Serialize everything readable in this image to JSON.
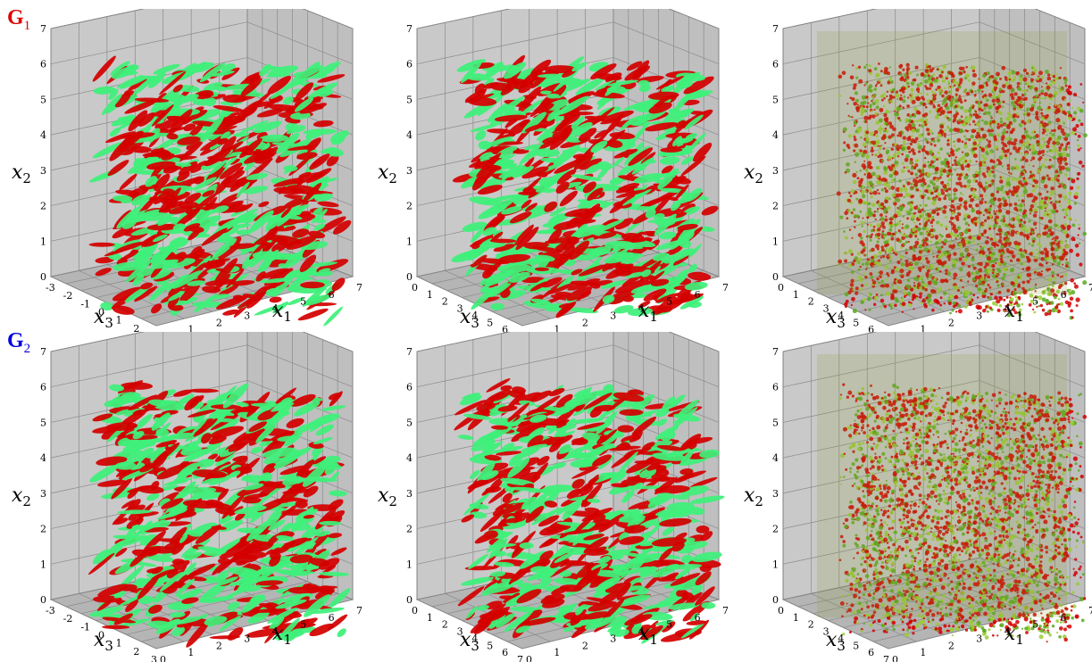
{
  "rows": [
    {
      "label_main": "G",
      "label_sub": "1",
      "color": "#e00000"
    },
    {
      "label_main": "G",
      "label_sub": "2",
      "color": "#0000e0"
    }
  ],
  "panels": [
    {
      "row": 0,
      "x3_ticks": [
        "-3",
        "-2",
        "-1",
        "0",
        "1",
        "2",
        "3"
      ],
      "density": "coarse"
    },
    {
      "row": 0,
      "x3_ticks": [
        "0",
        "1",
        "2",
        "3",
        "4",
        "5",
        "6",
        "7"
      ],
      "density": "coarse"
    },
    {
      "row": 0,
      "x3_ticks": [
        "0",
        "1",
        "2",
        "3",
        "4",
        "5",
        "6",
        "7"
      ],
      "density": "fine"
    },
    {
      "row": 1,
      "x3_ticks": [
        "-3",
        "-2",
        "-1",
        "0",
        "1",
        "2",
        "3"
      ],
      "density": "coarse"
    },
    {
      "row": 1,
      "x3_ticks": [
        "0",
        "1",
        "2",
        "3",
        "4",
        "5",
        "6",
        "7"
      ],
      "density": "coarse"
    },
    {
      "row": 1,
      "x3_ticks": [
        "0",
        "1",
        "2",
        "3",
        "4",
        "5",
        "6",
        "7"
      ],
      "density": "fine"
    }
  ],
  "x2_ticks": [
    "0",
    "1",
    "2",
    "3",
    "4",
    "5",
    "6",
    "7"
  ],
  "x1_ticks": [
    "0",
    "1",
    "2",
    "3",
    "4",
    "5",
    "6",
    "7"
  ],
  "axis_labels": {
    "x1": "x",
    "x1_sub": "1",
    "x2": "x",
    "x2_sub": "2",
    "x3": "x",
    "x3_sub": "3"
  },
  "colors": {
    "structure_red": "#d40000",
    "structure_green": "#3ef07a",
    "box_wall": "#c9c9c9",
    "box_floor": "#b5b5b5",
    "grid": "#8a8a8a"
  }
}
